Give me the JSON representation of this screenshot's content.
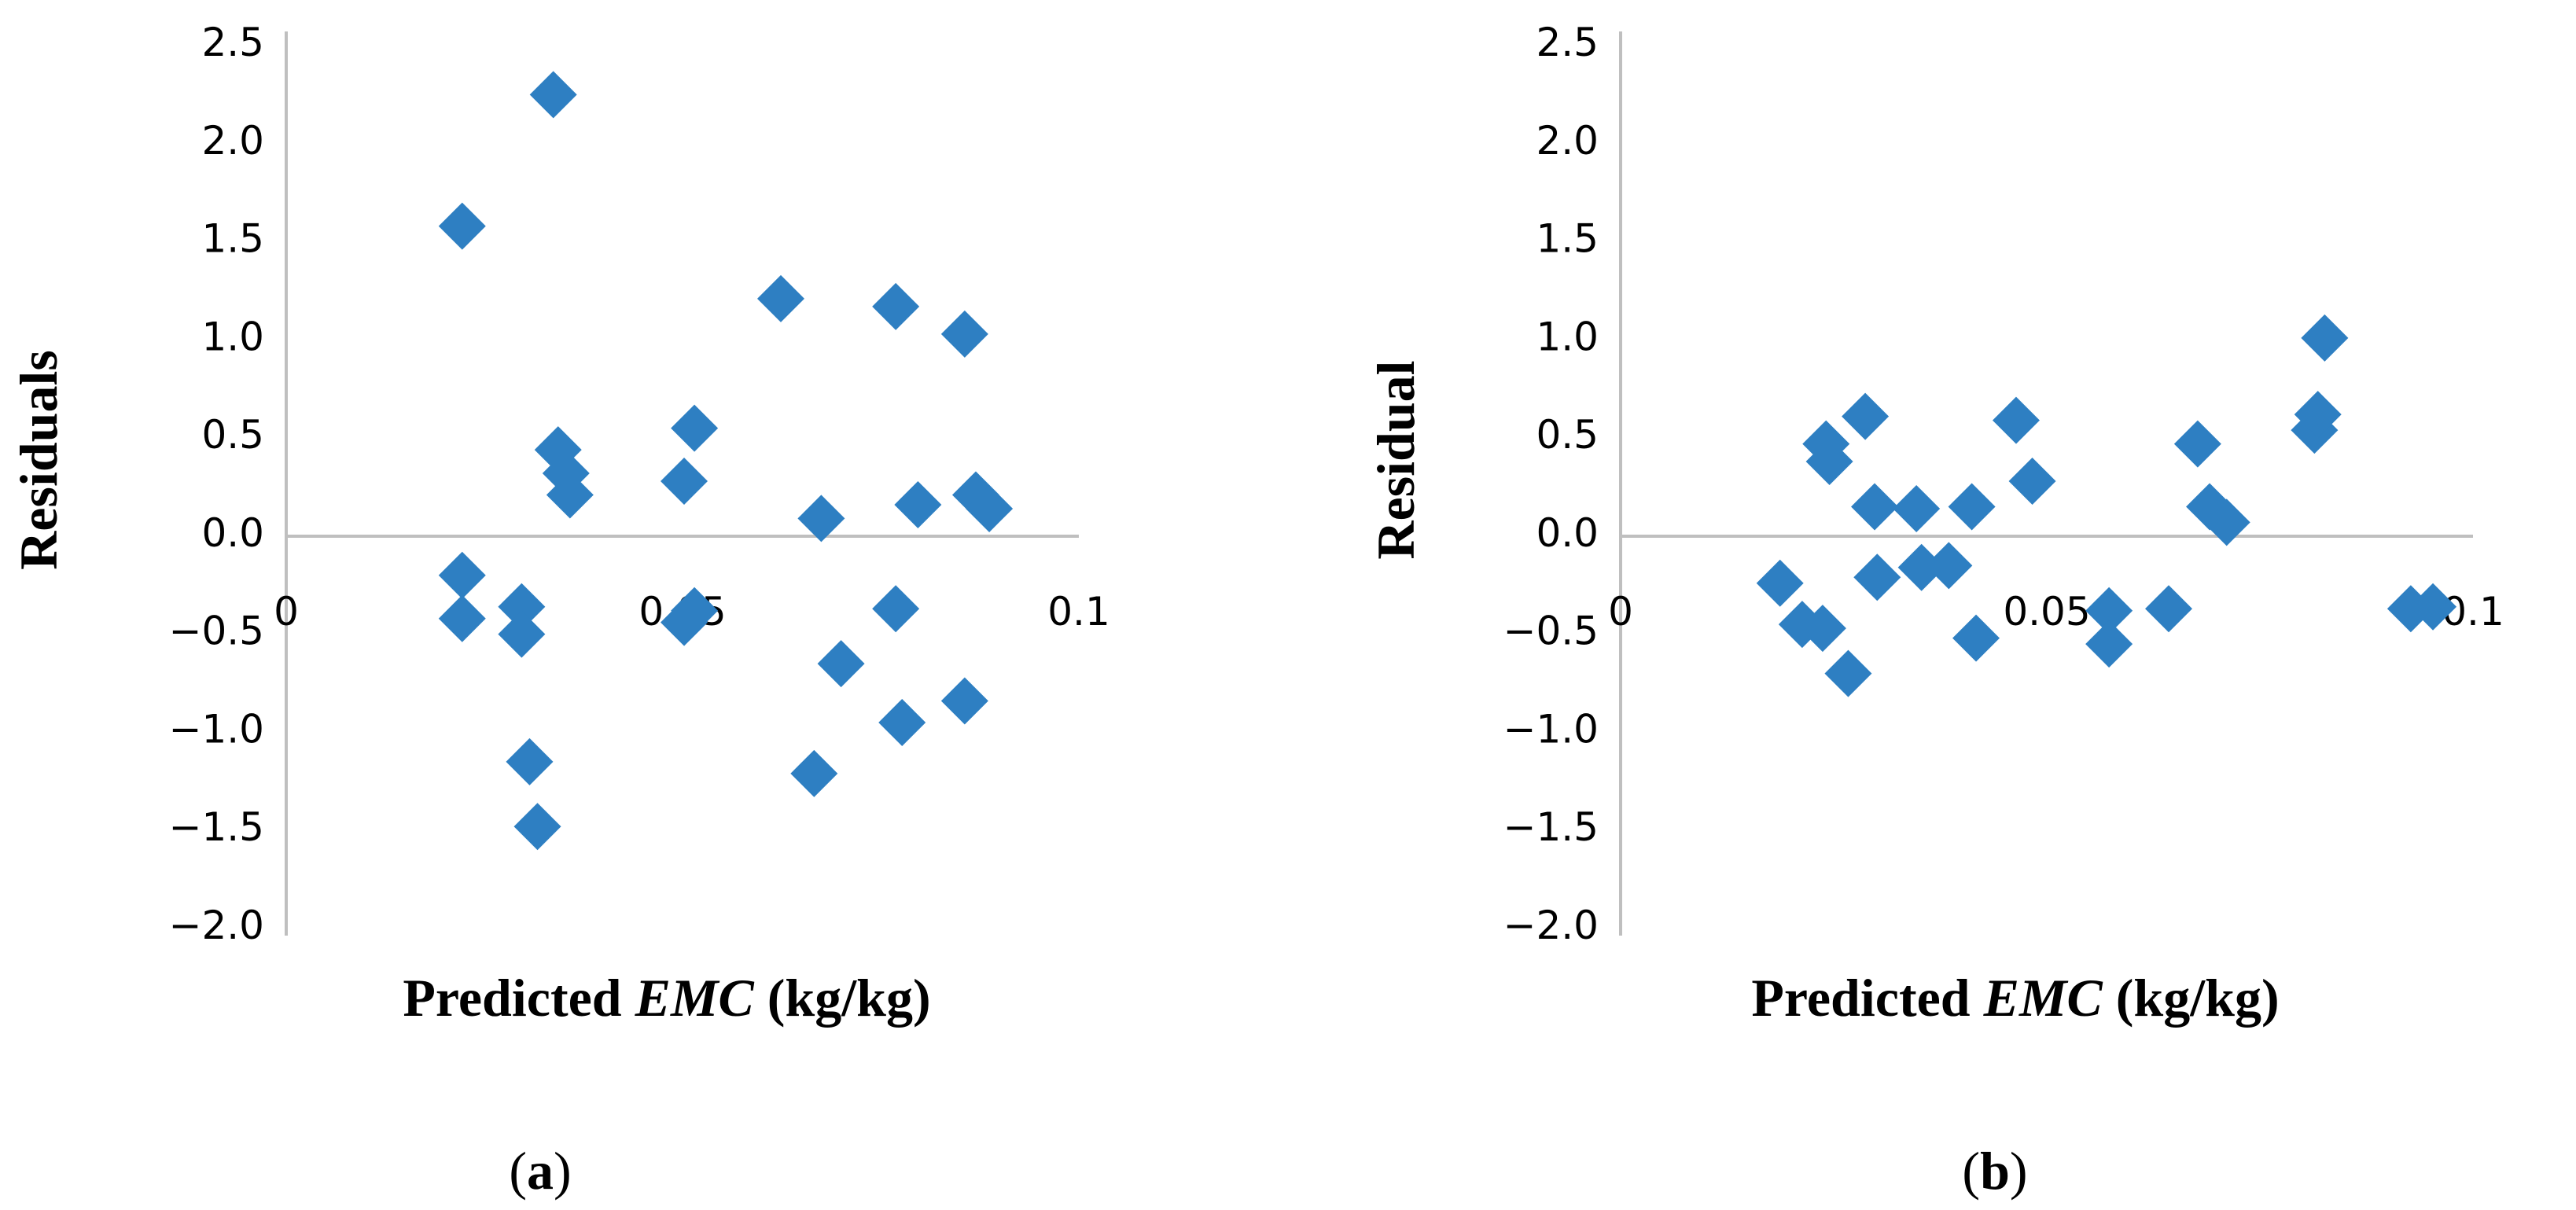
{
  "chart_data": [
    {
      "type": "scatter",
      "panel": "a",
      "panel_label": {
        "open": "(",
        "letter": "a",
        "close": ")"
      },
      "xlabel": {
        "prefix": "Predicted ",
        "italic": "EMC",
        "suffix": " (kg/kg)"
      },
      "ylabel": "Residuals",
      "xlim": [
        0,
        0.1
      ],
      "ylim": [
        -2.0,
        2.5
      ],
      "xticks": [
        0,
        0.05,
        0.1
      ],
      "xtick_labels": [
        "0",
        "0.05",
        "0.1"
      ],
      "yticks": [
        -2.0,
        -1.5,
        -1.0,
        -0.5,
        0.0,
        0.5,
        1.0,
        1.5,
        2.0,
        2.5
      ],
      "ytick_labels": [
        "−2.0",
        "−1.5",
        "−1.0",
        "−0.5",
        "0.0",
        "0.5",
        "1.0",
        "1.5",
        "2.0",
        "2.5"
      ],
      "marker": "diamond",
      "color": "#2e7fc2",
      "points": [
        {
          "x": 0.0222,
          "y": 1.56
        },
        {
          "x": 0.0222,
          "y": -0.22
        },
        {
          "x": 0.0222,
          "y": -0.44
        },
        {
          "x": 0.0297,
          "y": -0.38
        },
        {
          "x": 0.0297,
          "y": -0.52
        },
        {
          "x": 0.0307,
          "y": -1.17
        },
        {
          "x": 0.0317,
          "y": -1.5
        },
        {
          "x": 0.0337,
          "y": 2.23
        },
        {
          "x": 0.0343,
          "y": 0.42
        },
        {
          "x": 0.0353,
          "y": 0.3
        },
        {
          "x": 0.0358,
          "y": 0.19
        },
        {
          "x": 0.0502,
          "y": 0.26
        },
        {
          "x": 0.0502,
          "y": -0.46
        },
        {
          "x": 0.0515,
          "y": 0.53
        },
        {
          "x": 0.0515,
          "y": -0.4
        },
        {
          "x": 0.0624,
          "y": 1.19
        },
        {
          "x": 0.0666,
          "y": -1.23
        },
        {
          "x": 0.0675,
          "y": 0.07
        },
        {
          "x": 0.07,
          "y": -0.67
        },
        {
          "x": 0.0769,
          "y": 1.15
        },
        {
          "x": 0.0769,
          "y": -0.39
        },
        {
          "x": 0.0777,
          "y": -0.97
        },
        {
          "x": 0.0797,
          "y": 0.14
        },
        {
          "x": 0.0856,
          "y": 1.01
        },
        {
          "x": 0.0856,
          "y": -0.86
        },
        {
          "x": 0.087,
          "y": 0.19
        },
        {
          "x": 0.0887,
          "y": 0.12
        }
      ]
    },
    {
      "type": "scatter",
      "panel": "b",
      "panel_label": {
        "open": "(",
        "letter": "b",
        "close": ")"
      },
      "xlabel": {
        "prefix": "Predicted ",
        "italic": "EMC",
        "suffix": " (kg/kg)"
      },
      "ylabel": "Residual",
      "xlim": [
        0,
        0.1
      ],
      "ylim": [
        -2.0,
        2.5
      ],
      "xticks": [
        0,
        0.05,
        0.1
      ],
      "xtick_labels": [
        "0",
        "0.05",
        "0.1"
      ],
      "yticks": [
        -2.0,
        -1.5,
        -1.0,
        -0.5,
        0.0,
        0.5,
        1.0,
        1.5,
        2.0,
        2.5
      ],
      "ytick_labels": [
        "−2.0",
        "−1.5",
        "−1.0",
        "−0.5",
        "0.0",
        "0.5",
        "1.0",
        "1.5",
        "2.0",
        "2.5"
      ],
      "marker": "diamond",
      "color": "#2e7fc2",
      "points": [
        {
          "x": 0.0187,
          "y": -0.26
        },
        {
          "x": 0.0213,
          "y": -0.47
        },
        {
          "x": 0.0237,
          "y": -0.49
        },
        {
          "x": 0.0241,
          "y": 0.45
        },
        {
          "x": 0.0245,
          "y": 0.36
        },
        {
          "x": 0.0267,
          "y": -0.72
        },
        {
          "x": 0.0287,
          "y": 0.59
        },
        {
          "x": 0.0298,
          "y": 0.13
        },
        {
          "x": 0.0301,
          "y": -0.23
        },
        {
          "x": 0.0347,
          "y": 0.12
        },
        {
          "x": 0.0353,
          "y": -0.18
        },
        {
          "x": 0.0385,
          "y": -0.17
        },
        {
          "x": 0.0412,
          "y": 0.13
        },
        {
          "x": 0.0417,
          "y": -0.54
        },
        {
          "x": 0.0464,
          "y": 0.57
        },
        {
          "x": 0.0483,
          "y": 0.26
        },
        {
          "x": 0.0573,
          "y": -0.4
        },
        {
          "x": 0.0573,
          "y": -0.57
        },
        {
          "x": 0.0643,
          "y": -0.39
        },
        {
          "x": 0.0677,
          "y": 0.45
        },
        {
          "x": 0.0691,
          "y": 0.13
        },
        {
          "x": 0.0711,
          "y": 0.05
        },
        {
          "x": 0.0814,
          "y": 0.52
        },
        {
          "x": 0.0818,
          "y": 0.6
        },
        {
          "x": 0.0826,
          "y": 0.99
        },
        {
          "x": 0.0927,
          "y": -0.39
        },
        {
          "x": 0.0953,
          "y": -0.38
        }
      ]
    }
  ]
}
